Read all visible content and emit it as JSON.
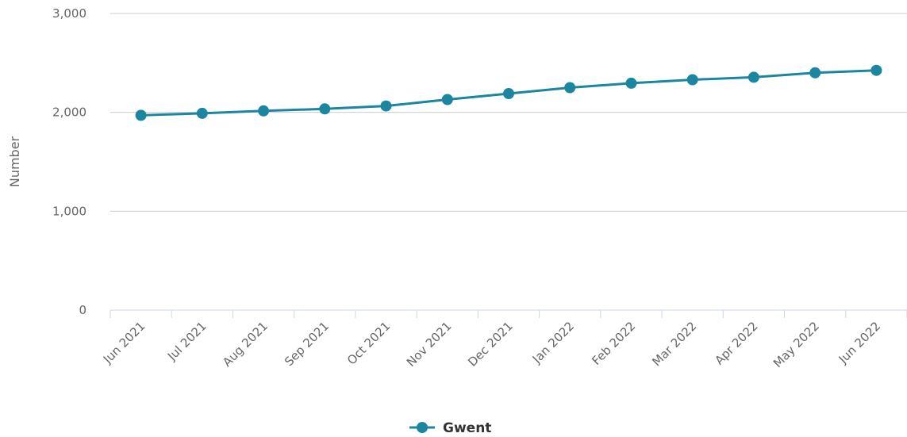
{
  "chart_data": {
    "type": "line",
    "title": "",
    "xlabel": "",
    "ylabel": "Number",
    "categories": [
      "Jun 2021",
      "Jul 2021",
      "Aug 2021",
      "Sep 2021",
      "Oct 2021",
      "Nov 2021",
      "Dec 2021",
      "Jan 2022",
      "Feb 2022",
      "Mar 2022",
      "Apr 2022",
      "May 2022",
      "Jun 2022"
    ],
    "series": [
      {
        "name": "Gwent",
        "color": "#1b86a0",
        "values": [
          1970,
          1990,
          2015,
          2035,
          2065,
          2130,
          2190,
          2250,
          2295,
          2330,
          2355,
          2400,
          2425
        ]
      }
    ],
    "ylim": [
      0,
      3000
    ],
    "yticks": [
      0,
      1000,
      2000,
      3000
    ],
    "ytick_labels": [
      "0",
      "1,000",
      "2,000",
      "3,000"
    ],
    "grid": true,
    "legend_position": "bottom-center"
  }
}
